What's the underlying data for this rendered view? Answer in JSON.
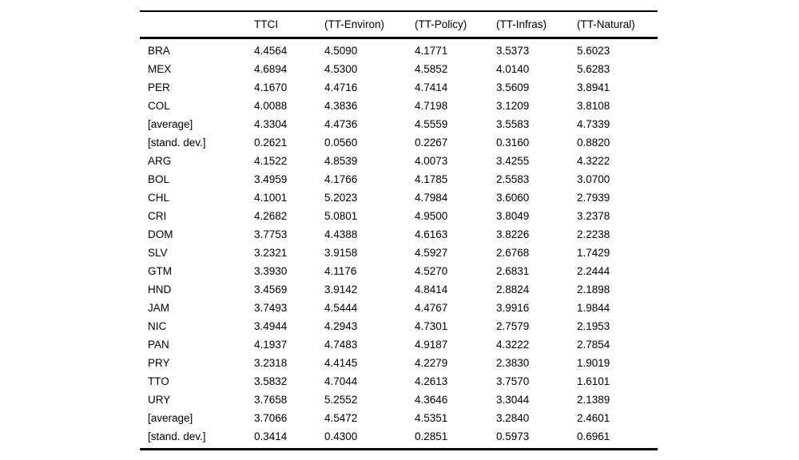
{
  "table": {
    "columns": [
      "",
      "TTCI",
      "(TT-Environ)",
      "(TT-Policy)",
      "(TT-Infras)",
      "(TT-Natural)"
    ],
    "rows": [
      {
        "label": "BRA",
        "values": [
          "4.4564",
          "4.5090",
          "4.1771",
          "3.5373",
          "5.6023"
        ]
      },
      {
        "label": "MEX",
        "values": [
          "4.6894",
          "4.5300",
          "4.5852",
          "4.0140",
          "5.6283"
        ]
      },
      {
        "label": "PER",
        "values": [
          "4.1670",
          "4.4716",
          "4.7414",
          "3.5609",
          "3.8941"
        ]
      },
      {
        "label": "COL",
        "values": [
          "4.0088",
          "4.3836",
          "4.7198",
          "3.1209",
          "3.8108"
        ]
      },
      {
        "label": "[average]",
        "values": [
          "4.3304",
          "4.4736",
          "4.5559",
          "3.5583",
          "4.7339"
        ]
      },
      {
        "label": "[stand. dev.]",
        "values": [
          "0.2621",
          "0.0560",
          "0.2267",
          "0.3160",
          "0.8820"
        ]
      },
      {
        "label": "ARG",
        "values": [
          "4.1522",
          "4.8539",
          "4.0073",
          "3.4255",
          "4.3222"
        ]
      },
      {
        "label": "BOL",
        "values": [
          "3.4959",
          "4.1766",
          "4.1785",
          "2.5583",
          "3.0700"
        ]
      },
      {
        "label": "CHL",
        "values": [
          "4.1001",
          "5.2023",
          "4.7984",
          "3.6060",
          "2.7939"
        ]
      },
      {
        "label": "CRI",
        "values": [
          "4.2682",
          "5.0801",
          "4.9500",
          "3.8049",
          "3.2378"
        ]
      },
      {
        "label": "DOM",
        "values": [
          "3.7753",
          "4.4388",
          "4.6163",
          "3.8226",
          "2.2238"
        ]
      },
      {
        "label": "SLV",
        "values": [
          "3.2321",
          "3.9158",
          "4.5927",
          "2.6768",
          "1.7429"
        ]
      },
      {
        "label": "GTM",
        "values": [
          "3.3930",
          "4.1176",
          "4.5270",
          "2.6831",
          "2.2444"
        ]
      },
      {
        "label": "HND",
        "values": [
          "3.4569",
          "3.9142",
          "4.8414",
          "2.8824",
          "2.1898"
        ]
      },
      {
        "label": "JAM",
        "values": [
          "3.7493",
          "4.5444",
          "4.4767",
          "3.9916",
          "1.9844"
        ]
      },
      {
        "label": "NIC",
        "values": [
          "3.4944",
          "4.2943",
          "4.7301",
          "2.7579",
          "2.1953"
        ]
      },
      {
        "label": "PAN",
        "values": [
          "4.1937",
          "4.7483",
          "4.9187",
          "4.3222",
          "2.7854"
        ]
      },
      {
        "label": "PRY",
        "values": [
          "3.2318",
          "4.4145",
          "4.2279",
          "2.3830",
          "1.9019"
        ]
      },
      {
        "label": "TTO",
        "values": [
          "3.5832",
          "4.7044",
          "4.2613",
          "3.7570",
          "1.6101"
        ]
      },
      {
        "label": "URY",
        "values": [
          "3.7658",
          "5.2552",
          "4.3646",
          "3.3044",
          "2.1389"
        ]
      },
      {
        "label": "[average]",
        "values": [
          "3.7066",
          "4.5472",
          "4.5351",
          "3.2840",
          "2.4601"
        ]
      },
      {
        "label": "[stand. dev.]",
        "values": [
          "0.3414",
          "0.4300",
          "0.2851",
          "0.5973",
          "0.6961"
        ]
      }
    ]
  }
}
